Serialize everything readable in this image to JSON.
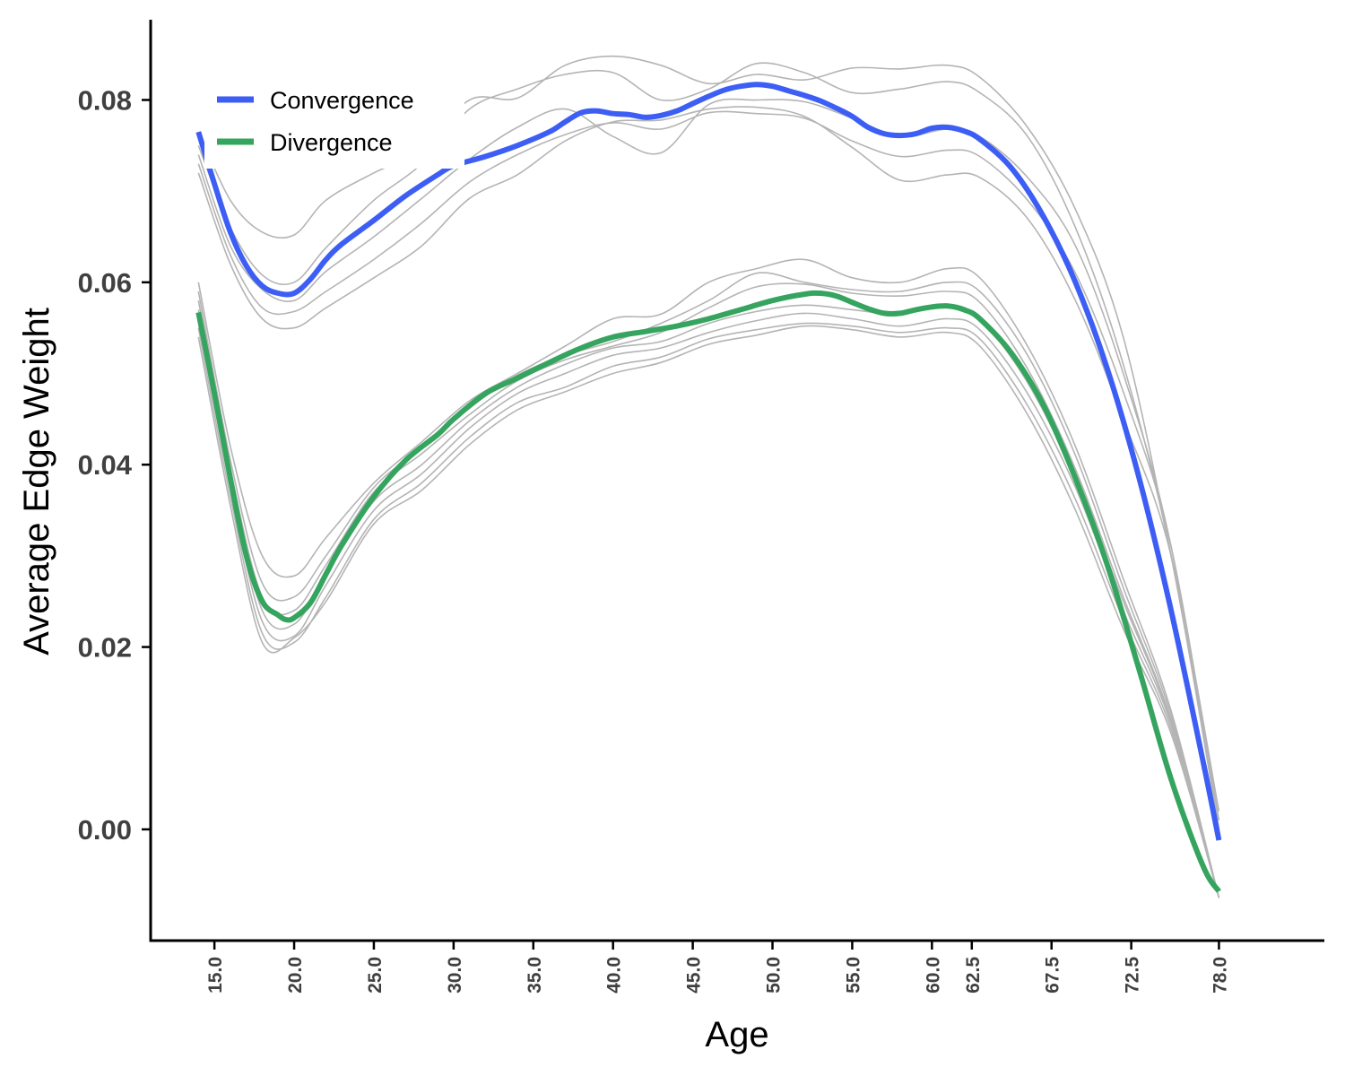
{
  "chart_data": {
    "type": "line",
    "title": "",
    "xlabel": "Age",
    "ylabel": "Average Edge Weight",
    "xlim": [
      11.0,
      84.5
    ],
    "ylim": [
      -0.0122,
      0.0888
    ],
    "x_ticks": [
      15,
      20,
      25,
      30,
      35,
      40,
      45,
      50,
      55,
      60,
      62.5,
      67.5,
      72.5,
      78
    ],
    "x_tick_labels": [
      "15.0",
      "20.0",
      "25.0",
      "30.0",
      "35.0",
      "40.0",
      "45.0",
      "50.0",
      "55.0",
      "60.0",
      "62.5",
      "67.5",
      "72.5",
      "78.0"
    ],
    "y_ticks": [
      0.0,
      0.02,
      0.04,
      0.06,
      0.08
    ],
    "y_tick_labels": [
      "0.00",
      "0.02",
      "0.04",
      "0.06",
      "0.08"
    ],
    "grid": false,
    "legend_position": "top-left",
    "colors": {
      "Convergence": "#3D5EF5",
      "Divergence": "#35A45E",
      "individual": "#B4B4B4"
    },
    "series": [
      {
        "name": "Convergence",
        "x": [
          14.0,
          15.0,
          16.0,
          17.0,
          18.0,
          19.0,
          20.0,
          21.0,
          22.0,
          23.0,
          25.0,
          27.0,
          29.0,
          30.0,
          32.0,
          34.0,
          36.0,
          37.0,
          38.0,
          39.0,
          40.0,
          41.0,
          42.0,
          43.0,
          44.0,
          45.0,
          46.0,
          47.0,
          48.0,
          49.0,
          50.0,
          51.0,
          52.0,
          53.0,
          54.0,
          55.0,
          56.0,
          57.0,
          58.0,
          59.0,
          60.0,
          61.0,
          62.0,
          63.0,
          65.0,
          67.0,
          69.0,
          71.0,
          73.0,
          75.0,
          77.0,
          78.0
        ],
        "y": [
          0.0765,
          0.0708,
          0.0655,
          0.0618,
          0.0596,
          0.0588,
          0.0588,
          0.0603,
          0.0625,
          0.0642,
          0.0668,
          0.0695,
          0.0718,
          0.0728,
          0.0738,
          0.075,
          0.0765,
          0.0776,
          0.0786,
          0.0788,
          0.0785,
          0.0784,
          0.0781,
          0.0783,
          0.0788,
          0.0796,
          0.0804,
          0.0811,
          0.0815,
          0.0817,
          0.0815,
          0.081,
          0.0805,
          0.0799,
          0.0791,
          0.0782,
          0.077,
          0.0763,
          0.0761,
          0.0763,
          0.0769,
          0.077,
          0.0766,
          0.0757,
          0.0725,
          0.0672,
          0.06,
          0.0505,
          0.0385,
          0.024,
          0.0075,
          -0.0012
        ]
      },
      {
        "name": "Divergence",
        "x": [
          14.0,
          15.0,
          16.0,
          17.0,
          18.0,
          19.0,
          19.5,
          20.0,
          21.0,
          22.0,
          23.0,
          25.0,
          27.0,
          29.0,
          30.0,
          32.0,
          34.0,
          36.0,
          38.0,
          40.0,
          42.0,
          44.0,
          46.0,
          48.0,
          50.0,
          52.0,
          53.0,
          54.0,
          55.0,
          56.0,
          57.0,
          58.0,
          59.0,
          60.0,
          61.0,
          62.0,
          63.0,
          65.0,
          67.0,
          69.0,
          71.0,
          73.0,
          75.0,
          77.0,
          78.0
        ],
        "y": [
          0.0567,
          0.0478,
          0.0385,
          0.03,
          0.025,
          0.0235,
          0.023,
          0.0232,
          0.0248,
          0.028,
          0.0312,
          0.0365,
          0.0405,
          0.0433,
          0.045,
          0.0478,
          0.0495,
          0.0512,
          0.0528,
          0.054,
          0.0546,
          0.0552,
          0.056,
          0.057,
          0.058,
          0.0587,
          0.0588,
          0.0585,
          0.0578,
          0.0571,
          0.0566,
          0.0566,
          0.057,
          0.0573,
          0.0574,
          0.057,
          0.056,
          0.0522,
          0.0465,
          0.0385,
          0.029,
          0.0175,
          0.0055,
          -0.004,
          -0.0068
        ]
      }
    ],
    "background_lines": [
      {
        "x": [
          14,
          16,
          18,
          20,
          22,
          25,
          28,
          31,
          34,
          37,
          40,
          43,
          46,
          49,
          52,
          55,
          58,
          61,
          63,
          66,
          69,
          72,
          75,
          78
        ],
        "y": [
          0.0765,
          0.069,
          0.0655,
          0.0652,
          0.069,
          0.072,
          0.0745,
          0.08,
          0.0802,
          0.0838,
          0.0848,
          0.0838,
          0.0818,
          0.0828,
          0.0822,
          0.0835,
          0.0834,
          0.0838,
          0.0825,
          0.077,
          0.068,
          0.054,
          0.03,
          0.001
        ]
      },
      {
        "x": [
          14,
          16,
          18,
          20,
          22,
          25,
          28,
          31,
          34,
          37,
          40,
          43,
          46,
          49,
          52,
          55,
          58,
          61,
          63,
          66,
          69,
          72,
          75,
          78
        ],
        "y": [
          0.075,
          0.066,
          0.0608,
          0.06,
          0.0638,
          0.069,
          0.073,
          0.079,
          0.0812,
          0.0828,
          0.083,
          0.08,
          0.0812,
          0.084,
          0.083,
          0.0808,
          0.0812,
          0.082,
          0.0808,
          0.076,
          0.066,
          0.051,
          0.03,
          0.0
        ]
      },
      {
        "x": [
          14,
          16,
          18,
          20,
          22,
          25,
          28,
          31,
          34,
          37,
          40,
          43,
          46,
          49,
          52,
          55,
          58,
          61,
          63,
          66,
          69,
          72,
          75,
          78
        ],
        "y": [
          0.074,
          0.064,
          0.0592,
          0.058,
          0.0612,
          0.065,
          0.0692,
          0.0735,
          0.077,
          0.079,
          0.076,
          0.0742,
          0.0795,
          0.08,
          0.0798,
          0.078,
          0.076,
          0.0768,
          0.076,
          0.0715,
          0.064,
          0.05,
          0.031,
          0.0
        ]
      },
      {
        "x": [
          14,
          16,
          18,
          20,
          22,
          25,
          28,
          31,
          34,
          37,
          40,
          43,
          46,
          49,
          52,
          55,
          58,
          61,
          63,
          66,
          69,
          72,
          75,
          78
        ],
        "y": [
          0.073,
          0.063,
          0.0572,
          0.0568,
          0.059,
          0.0625,
          0.0665,
          0.071,
          0.074,
          0.0762,
          0.0775,
          0.0768,
          0.0786,
          0.0785,
          0.078,
          0.0755,
          0.0738,
          0.0745,
          0.0738,
          0.069,
          0.061,
          0.048,
          0.031,
          0.001
        ]
      },
      {
        "x": [
          14,
          16,
          18,
          20,
          22,
          25,
          28,
          31,
          34,
          37,
          40,
          43,
          46,
          49,
          52,
          55,
          58,
          61,
          63,
          66,
          69,
          72,
          75,
          78
        ],
        "y": [
          0.072,
          0.062,
          0.056,
          0.055,
          0.0572,
          0.0605,
          0.064,
          0.0692,
          0.0718,
          0.0755,
          0.0776,
          0.0778,
          0.079,
          0.0792,
          0.0782,
          0.0748,
          0.0712,
          0.0718,
          0.0715,
          0.067,
          0.058,
          0.045,
          0.03,
          0.002
        ]
      },
      {
        "x": [
          14,
          16,
          18,
          20,
          22,
          25,
          28,
          31,
          34,
          37,
          40,
          43,
          46,
          49,
          52,
          55,
          58,
          61,
          63,
          66,
          69,
          72,
          75,
          78
        ],
        "y": [
          0.06,
          0.042,
          0.03,
          0.0278,
          0.032,
          0.038,
          0.0425,
          0.047,
          0.05,
          0.053,
          0.056,
          0.0565,
          0.06,
          0.0615,
          0.0625,
          0.0605,
          0.06,
          0.0615,
          0.0605,
          0.053,
          0.042,
          0.0275,
          0.013,
          -0.0075
        ]
      },
      {
        "x": [
          14,
          16,
          18,
          20,
          22,
          25,
          28,
          31,
          34,
          37,
          40,
          43,
          46,
          49,
          52,
          55,
          58,
          61,
          63,
          66,
          69,
          72,
          75,
          78
        ],
        "y": [
          0.059,
          0.0405,
          0.027,
          0.0255,
          0.03,
          0.0375,
          0.0418,
          0.0462,
          0.0498,
          0.052,
          0.0535,
          0.0555,
          0.058,
          0.061,
          0.06,
          0.0592,
          0.059,
          0.06,
          0.059,
          0.052,
          0.041,
          0.0265,
          0.0125,
          -0.0075
        ]
      },
      {
        "x": [
          14,
          16,
          18,
          20,
          22,
          25,
          28,
          31,
          34,
          37,
          40,
          43,
          46,
          49,
          52,
          55,
          58,
          61,
          63,
          66,
          69,
          72,
          75,
          78
        ],
        "y": [
          0.058,
          0.0395,
          0.0255,
          0.024,
          0.029,
          0.037,
          0.0412,
          0.0455,
          0.0492,
          0.0515,
          0.053,
          0.0545,
          0.0572,
          0.0595,
          0.0598,
          0.0588,
          0.0585,
          0.059,
          0.0578,
          0.0505,
          0.0395,
          0.0255,
          0.012,
          -0.0075
        ]
      },
      {
        "x": [
          14,
          16,
          18,
          20,
          22,
          25,
          28,
          31,
          34,
          37,
          40,
          43,
          46,
          49,
          52,
          55,
          58,
          61,
          63,
          66,
          69,
          72,
          75,
          78
        ],
        "y": [
          0.057,
          0.0385,
          0.024,
          0.0225,
          0.028,
          0.036,
          0.04,
          0.0448,
          0.0485,
          0.051,
          0.0528,
          0.0535,
          0.0555,
          0.0568,
          0.0575,
          0.057,
          0.0565,
          0.0575,
          0.056,
          0.049,
          0.0385,
          0.025,
          0.0118,
          -0.0075
        ]
      },
      {
        "x": [
          14,
          16,
          18,
          20,
          22,
          25,
          28,
          31,
          34,
          37,
          40,
          43,
          46,
          49,
          52,
          55,
          58,
          61,
          63,
          66,
          69,
          72,
          75,
          78
        ],
        "y": [
          0.056,
          0.0375,
          0.0228,
          0.0212,
          0.0268,
          0.035,
          0.039,
          0.044,
          0.0478,
          0.05,
          0.052,
          0.0528,
          0.0545,
          0.0558,
          0.0566,
          0.056,
          0.0552,
          0.056,
          0.0548,
          0.0478,
          0.0375,
          0.024,
          0.0115,
          -0.0075
        ]
      },
      {
        "x": [
          14,
          16,
          18,
          20,
          22,
          25,
          28,
          31,
          34,
          37,
          40,
          43,
          46,
          49,
          52,
          55,
          58,
          61,
          63,
          66,
          69,
          72,
          75,
          78
        ],
        "y": [
          0.055,
          0.0365,
          0.0215,
          0.0205,
          0.0255,
          0.034,
          0.038,
          0.043,
          0.0468,
          0.0485,
          0.0508,
          0.0518,
          0.0538,
          0.0548,
          0.0555,
          0.0552,
          0.0545,
          0.055,
          0.0538,
          0.0465,
          0.0362,
          0.023,
          0.011,
          -0.0075
        ]
      },
      {
        "x": [
          14,
          16,
          18,
          20,
          22,
          25,
          28,
          31,
          34,
          37,
          40,
          43,
          46,
          49,
          52,
          55,
          58,
          61,
          63,
          66,
          69,
          72,
          75,
          78
        ],
        "y": [
          0.054,
          0.0355,
          0.0205,
          0.021,
          0.025,
          0.0335,
          0.0372,
          0.0422,
          0.046,
          0.048,
          0.05,
          0.0512,
          0.0532,
          0.0542,
          0.0552,
          0.0548,
          0.054,
          0.0545,
          0.053,
          0.0455,
          0.035,
          0.022,
          0.0105,
          -0.0075
        ]
      }
    ]
  },
  "legend": {
    "items": [
      {
        "label": "Convergence",
        "color": "#3D5EF5"
      },
      {
        "label": "Divergence",
        "color": "#35A45E"
      }
    ]
  }
}
